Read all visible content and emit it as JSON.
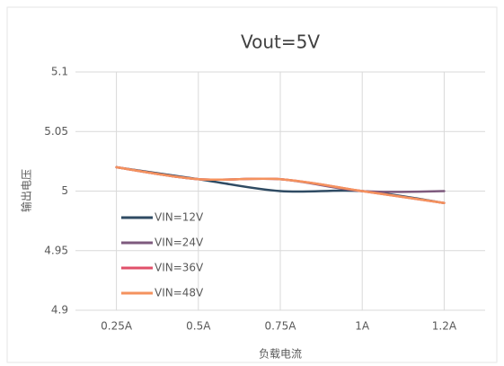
{
  "chart_data": {
    "type": "line",
    "title": "Vout=5V",
    "x_label": "负载电流",
    "y_label": "输出电压",
    "categories": [
      "0.25A",
      "0.5A",
      "0.75A",
      "1A",
      "1.2A"
    ],
    "series": [
      {
        "name": "VIN=12V",
        "color": "#2f4b63",
        "values": [
          5.02,
          5.01,
          5.0,
          5.0,
          4.99
        ]
      },
      {
        "name": "VIN=24V",
        "color": "#7e5a7e",
        "values": [
          5.02,
          5.01,
          5.01,
          5.0,
          5.0
        ]
      },
      {
        "name": "VIN=36V",
        "color": "#e0506a",
        "values": [
          5.02,
          5.01,
          5.01,
          5.0,
          4.99
        ]
      },
      {
        "name": "VIN=48V",
        "color": "#f4925e",
        "values": [
          5.02,
          5.01,
          5.01,
          5.0,
          4.99
        ]
      }
    ],
    "ylim": [
      4.9,
      5.1
    ],
    "yticks": [
      4.9,
      4.95,
      5,
      5.05,
      5.1
    ],
    "grid": true,
    "legend": "left",
    "smooth": true
  }
}
